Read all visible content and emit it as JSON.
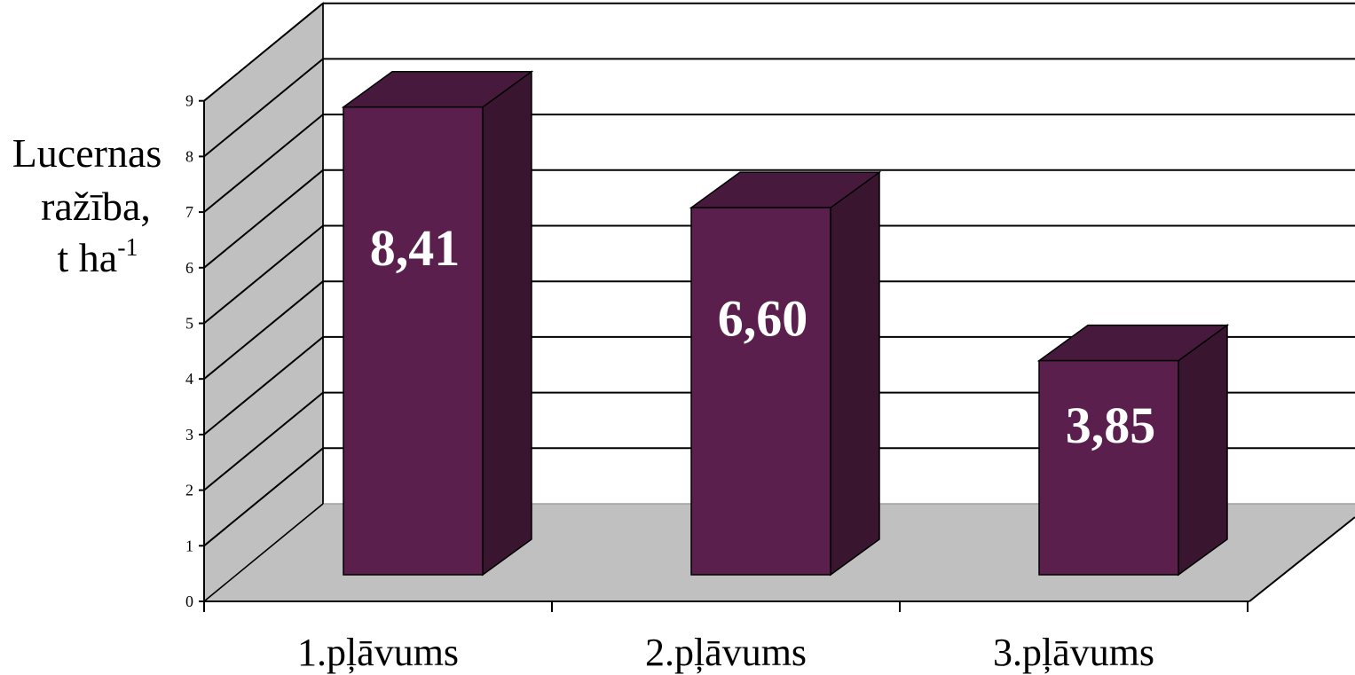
{
  "chart_data": {
    "type": "bar",
    "categories": [
      "1.pļāvums",
      "2.pļāvums",
      "3.pļāvums"
    ],
    "values": [
      8.41,
      6.6,
      3.85
    ],
    "data_labels": [
      "8,41",
      "6,60",
      "3,85"
    ],
    "ylabel_lines": [
      "Lucernas",
      "ražība,"
    ],
    "ylabel_unit": {
      "base": "t ha",
      "sup": "-1"
    },
    "ylim": [
      0,
      9
    ],
    "yticks": [
      "0",
      "1",
      "2",
      "3",
      "4",
      "5",
      "6",
      "7",
      "8",
      "9"
    ],
    "grid": true,
    "three_d": true,
    "legend": "none",
    "colors": {
      "bar_front": "#5a1f4d",
      "bar_top": "#471a3d",
      "bar_side": "#3a1530",
      "wall_left": "#c0c0c0",
      "floor": "#c0c0c0",
      "label": "#ffffff",
      "line": "#000000"
    }
  }
}
